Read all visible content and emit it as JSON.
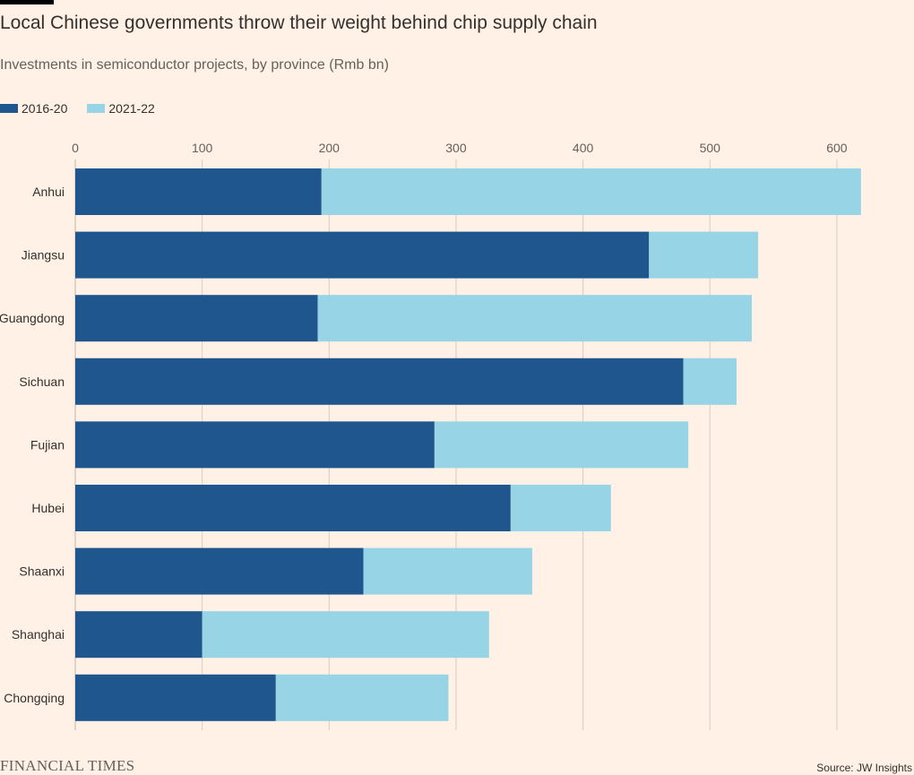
{
  "header": {
    "title": "Local Chinese governments throw their weight behind chip supply chain",
    "subtitle": "Investments in semiconductor projects, by province (Rmb bn)"
  },
  "footer": {
    "brand": "FINANCIAL TIMES",
    "source": "Source: JW Insights"
  },
  "colors": {
    "background": "#fff1e5",
    "series_2016_20": "#1f568e",
    "series_2021_22": "#96d4e6",
    "gridline": "#d9ccc1"
  },
  "chart_data": {
    "type": "bar",
    "orientation": "horizontal",
    "stacked": true,
    "categories": [
      "Anhui",
      "Jiangsu",
      "Guangdong",
      "Sichuan",
      "Fujian",
      "Hubei",
      "Shaanxi",
      "Shanghai",
      "Chongqing"
    ],
    "series": [
      {
        "name": "2016-20",
        "values": [
          194,
          452,
          191,
          479,
          283,
          343,
          227,
          100,
          158
        ]
      },
      {
        "name": "2021-22",
        "values": [
          425,
          86,
          342,
          42,
          200,
          79,
          133,
          226,
          136
        ]
      }
    ],
    "xlim": [
      0,
      620
    ],
    "xticks": [
      "0",
      "100",
      "200",
      "300",
      "400",
      "500",
      "600"
    ],
    "xtick_values": [
      0,
      100,
      200,
      300,
      400,
      500,
      600
    ],
    "grid": true,
    "legend_position": "top-left"
  }
}
